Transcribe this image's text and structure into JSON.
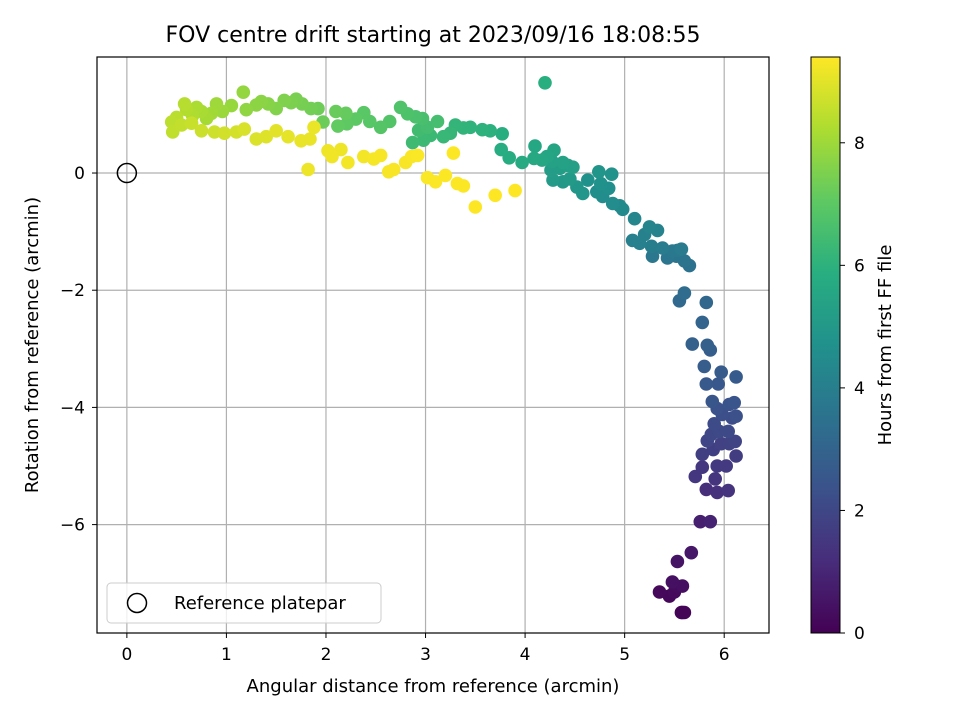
{
  "chart_data": {
    "type": "scatter",
    "title": "FOV centre drift starting at 2023/09/16 18:08:55",
    "xlabel": "Angular distance from reference (arcmin)",
    "ylabel": "Rotation from reference (arcmin)",
    "xlim": [
      -0.3,
      6.45
    ],
    "ylim": [
      -7.85,
      1.98
    ],
    "xticks": [
      0,
      1,
      2,
      3,
      4,
      5,
      6
    ],
    "yticks": [
      -6,
      -4,
      -2,
      0
    ],
    "grid": true,
    "legend": {
      "placement": "bottom-left",
      "label": "Reference platepar"
    },
    "reference_point": {
      "x": 0,
      "y": 0
    },
    "colorbar": {
      "label": "Hours from first FF file",
      "colormap": "viridis",
      "range": [
        0,
        9.4
      ],
      "ticks": [
        0,
        2,
        4,
        6,
        8
      ]
    },
    "series": [
      {
        "points": [
          [
            5.57,
            -7.5,
            0.05
          ],
          [
            5.58,
            -7.5,
            0.08
          ],
          [
            5.6,
            -7.5,
            0.1
          ],
          [
            5.45,
            -7.22,
            0.15
          ],
          [
            5.35,
            -7.15,
            0.2
          ],
          [
            5.5,
            -7.15,
            0.25
          ],
          [
            5.52,
            -7.05,
            0.3
          ],
          [
            5.58,
            -7.05,
            0.35
          ],
          [
            5.48,
            -6.98,
            0.4
          ],
          [
            5.53,
            -6.63,
            0.5
          ],
          [
            5.67,
            -6.48,
            0.6
          ],
          [
            5.76,
            -5.95,
            0.8
          ],
          [
            5.86,
            -5.95,
            0.9
          ],
          [
            5.82,
            -5.4,
            1.2
          ],
          [
            5.93,
            -5.45,
            1.3
          ],
          [
            6.04,
            -5.42,
            1.35
          ],
          [
            5.91,
            -5.22,
            1.4
          ],
          [
            5.71,
            -5.18,
            1.45
          ],
          [
            5.78,
            -5.02,
            1.5
          ],
          [
            5.93,
            -5.0,
            1.55
          ],
          [
            6.02,
            -5.0,
            1.6
          ],
          [
            6.12,
            -4.83,
            1.65
          ],
          [
            5.78,
            -4.8,
            1.7
          ],
          [
            5.89,
            -4.72,
            1.75
          ],
          [
            5.97,
            -4.62,
            1.8
          ],
          [
            6.05,
            -4.62,
            1.85
          ],
          [
            6.11,
            -4.58,
            1.9
          ],
          [
            5.83,
            -4.57,
            1.95
          ],
          [
            5.87,
            -4.46,
            2.0
          ],
          [
            5.95,
            -4.41,
            2.05
          ],
          [
            6.04,
            -4.41,
            2.1
          ],
          [
            5.9,
            -4.28,
            2.15
          ],
          [
            6.08,
            -4.18,
            2.2
          ],
          [
            5.98,
            -4.12,
            2.25
          ],
          [
            6.12,
            -4.15,
            2.3
          ],
          [
            5.93,
            -4.02,
            2.35
          ],
          [
            6.05,
            -3.95,
            2.4
          ],
          [
            6.1,
            -3.92,
            2.45
          ],
          [
            5.88,
            -3.9,
            2.5
          ],
          [
            5.94,
            -3.6,
            2.55
          ],
          [
            5.82,
            -3.6,
            2.6
          ],
          [
            6.12,
            -3.48,
            2.65
          ],
          [
            5.97,
            -3.4,
            2.7
          ],
          [
            5.8,
            -3.3,
            2.75
          ],
          [
            5.86,
            -3.02,
            2.8
          ],
          [
            5.83,
            -2.94,
            2.85
          ],
          [
            5.68,
            -2.92,
            2.9
          ],
          [
            5.78,
            -2.55,
            3.0
          ],
          [
            5.82,
            -2.21,
            3.1
          ],
          [
            5.55,
            -2.18,
            3.2
          ],
          [
            5.6,
            -2.05,
            3.3
          ],
          [
            5.65,
            -1.58,
            3.5
          ],
          [
            5.6,
            -1.5,
            3.55
          ],
          [
            5.52,
            -1.42,
            3.6
          ],
          [
            5.43,
            -1.45,
            3.65
          ],
          [
            5.28,
            -1.42,
            3.7
          ],
          [
            5.48,
            -1.33,
            3.75
          ],
          [
            5.53,
            -1.32,
            3.8
          ],
          [
            5.57,
            -1.3,
            3.85
          ],
          [
            5.38,
            -1.28,
            3.9
          ],
          [
            5.27,
            -1.25,
            3.95
          ],
          [
            5.15,
            -1.2,
            4.0
          ],
          [
            5.08,
            -1.15,
            4.05
          ],
          [
            5.2,
            -1.05,
            4.1
          ],
          [
            5.33,
            -0.98,
            4.15
          ],
          [
            5.25,
            -0.92,
            4.2
          ],
          [
            5.1,
            -0.78,
            4.3
          ],
          [
            4.98,
            -0.62,
            4.4
          ],
          [
            4.95,
            -0.56,
            4.45
          ],
          [
            4.88,
            -0.52,
            4.5
          ],
          [
            4.78,
            -0.4,
            4.55
          ],
          [
            4.72,
            -0.32,
            4.6
          ],
          [
            4.84,
            -0.26,
            4.65
          ],
          [
            4.76,
            -0.18,
            4.7
          ],
          [
            4.63,
            -0.12,
            4.75
          ],
          [
            4.87,
            -0.02,
            4.8
          ],
          [
            4.74,
            0.02,
            4.85
          ],
          [
            4.58,
            -0.35,
            4.9
          ],
          [
            4.52,
            -0.24,
            4.95
          ],
          [
            4.38,
            -0.15,
            5.0
          ],
          [
            4.45,
            -0.1,
            5.05
          ],
          [
            4.28,
            -0.12,
            5.1
          ],
          [
            4.26,
            0.05,
            5.15
          ],
          [
            4.35,
            0.08,
            5.2
          ],
          [
            4.43,
            0.13,
            5.25
          ],
          [
            4.48,
            0.1,
            5.3
          ],
          [
            4.38,
            0.18,
            5.35
          ],
          [
            4.27,
            0.2,
            5.4
          ],
          [
            4.29,
            0.39,
            5.45
          ],
          [
            4.22,
            0.28,
            5.5
          ],
          [
            4.17,
            0.22,
            5.55
          ],
          [
            4.1,
            0.46,
            5.6
          ],
          [
            4.09,
            0.25,
            5.65
          ],
          [
            3.97,
            0.18,
            5.7
          ],
          [
            3.84,
            0.26,
            5.75
          ],
          [
            3.76,
            0.4,
            5.8
          ],
          [
            3.77,
            0.67,
            5.85
          ],
          [
            4.2,
            1.54,
            5.9
          ],
          [
            3.65,
            0.72,
            5.95
          ],
          [
            3.57,
            0.74,
            6.0
          ],
          [
            3.45,
            0.78,
            6.05
          ],
          [
            3.38,
            0.77,
            6.1
          ],
          [
            3.3,
            0.82,
            6.15
          ],
          [
            3.25,
            0.68,
            6.2
          ],
          [
            3.18,
            0.62,
            6.25
          ],
          [
            3.05,
            0.64,
            6.3
          ],
          [
            2.98,
            0.56,
            6.35
          ],
          [
            2.87,
            0.52,
            6.4
          ],
          [
            2.93,
            0.73,
            6.45
          ],
          [
            3.02,
            0.78,
            6.5
          ],
          [
            3.12,
            0.88,
            6.55
          ],
          [
            2.97,
            0.93,
            6.6
          ],
          [
            2.9,
            0.96,
            6.65
          ],
          [
            2.82,
            1.01,
            6.7
          ],
          [
            2.75,
            1.12,
            6.75
          ],
          [
            2.64,
            0.88,
            6.8
          ],
          [
            2.55,
            0.78,
            6.85
          ],
          [
            2.44,
            0.88,
            6.9
          ],
          [
            2.38,
            1.03,
            6.95
          ],
          [
            2.3,
            0.92,
            7.0
          ],
          [
            2.21,
            0.84,
            7.05
          ],
          [
            2.12,
            0.8,
            7.1
          ],
          [
            2.2,
            1.02,
            7.15
          ],
          [
            2.1,
            1.05,
            7.2
          ],
          [
            1.97,
            0.87,
            7.25
          ],
          [
            1.92,
            1.1,
            7.3
          ],
          [
            1.85,
            1.1,
            7.35
          ],
          [
            1.76,
            1.18,
            7.4
          ],
          [
            1.7,
            1.26,
            7.45
          ],
          [
            1.65,
            1.2,
            7.5
          ],
          [
            1.58,
            1.24,
            7.55
          ],
          [
            1.5,
            1.1,
            7.6
          ],
          [
            1.42,
            1.18,
            7.65
          ],
          [
            1.35,
            1.22,
            7.7
          ],
          [
            1.3,
            1.16,
            7.75
          ],
          [
            1.2,
            1.08,
            7.8
          ],
          [
            1.17,
            1.38,
            7.85
          ],
          [
            1.05,
            1.15,
            7.9
          ],
          [
            0.96,
            1.05,
            7.95
          ],
          [
            0.9,
            1.18,
            8.0
          ],
          [
            0.85,
            1.02,
            8.05
          ],
          [
            0.8,
            0.93,
            8.1
          ],
          [
            0.75,
            1.05,
            8.15
          ],
          [
            0.7,
            1.12,
            8.2
          ],
          [
            0.66,
            0.98,
            8.25
          ],
          [
            0.6,
            1.08,
            8.3
          ],
          [
            0.58,
            1.18,
            8.35
          ],
          [
            0.5,
            0.95,
            8.4
          ],
          [
            0.45,
            0.87,
            8.45
          ],
          [
            0.46,
            0.7,
            8.5
          ],
          [
            0.55,
            0.82,
            8.55
          ],
          [
            0.65,
            0.85,
            8.6
          ],
          [
            0.75,
            0.72,
            8.65
          ],
          [
            0.88,
            0.7,
            8.7
          ],
          [
            0.98,
            0.68,
            8.75
          ],
          [
            1.1,
            0.7,
            8.8
          ],
          [
            1.18,
            0.75,
            8.85
          ],
          [
            1.3,
            0.58,
            8.9
          ],
          [
            1.4,
            0.62,
            8.95
          ],
          [
            1.5,
            0.72,
            9.0
          ],
          [
            1.62,
            0.62,
            9.05
          ],
          [
            1.75,
            0.55,
            9.1
          ],
          [
            1.84,
            0.58,
            9.12
          ],
          [
            1.88,
            0.78,
            9.14
          ],
          [
            1.82,
            0.06,
            9.16
          ],
          [
            2.02,
            0.38,
            9.18
          ],
          [
            2.15,
            0.4,
            9.2
          ],
          [
            2.06,
            0.28,
            9.22
          ],
          [
            2.22,
            0.18,
            9.24
          ],
          [
            2.38,
            0.28,
            9.26
          ],
          [
            2.48,
            0.24,
            9.28
          ],
          [
            2.55,
            0.3,
            9.3
          ],
          [
            2.63,
            0.02,
            9.31
          ],
          [
            2.68,
            0.06,
            9.32
          ],
          [
            2.8,
            0.18,
            9.33
          ],
          [
            2.86,
            0.28,
            9.34
          ],
          [
            2.92,
            0.3,
            9.35
          ],
          [
            3.02,
            -0.08,
            9.36
          ],
          [
            3.1,
            -0.15,
            9.37
          ],
          [
            3.2,
            -0.04,
            9.38
          ],
          [
            3.28,
            0.34,
            9.38
          ],
          [
            3.32,
            -0.18,
            9.39
          ],
          [
            3.38,
            -0.22,
            9.39
          ],
          [
            3.5,
            -0.58,
            9.4
          ],
          [
            3.7,
            -0.38,
            9.4
          ],
          [
            3.9,
            -0.3,
            9.4
          ]
        ]
      }
    ]
  }
}
